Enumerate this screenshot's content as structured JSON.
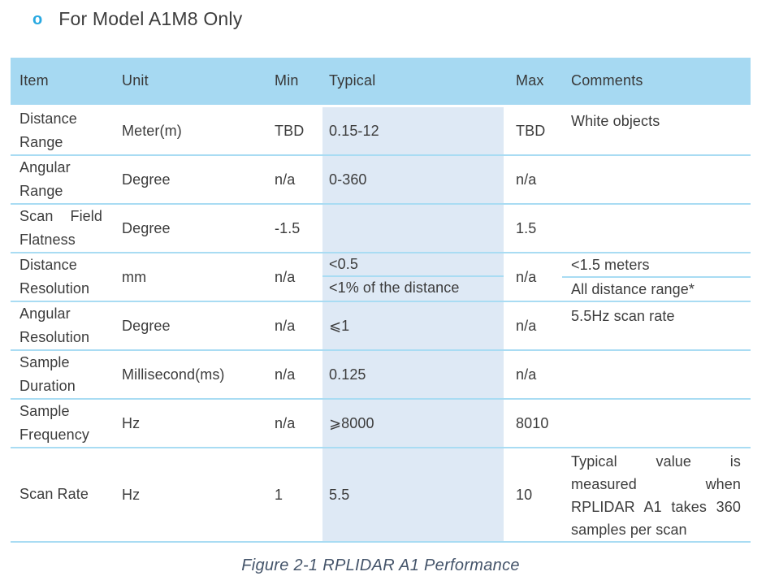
{
  "heading": {
    "bullet": "o",
    "text": "For Model A1M8 Only"
  },
  "table": {
    "columns": [
      "Item",
      "Unit",
      "Min",
      "Typical",
      "Max",
      "Comments"
    ],
    "rows": [
      {
        "item": "Distance Range",
        "unit": "Meter(m)",
        "min": "TBD",
        "typical": "0.15-12",
        "max": "TBD",
        "comments": "White objects"
      },
      {
        "item": "Angular Range",
        "unit": "Degree",
        "min": "n/a",
        "typical": "0-360",
        "max": "n/a",
        "comments": ""
      },
      {
        "item": "Scan Field Flatness",
        "unit": "Degree",
        "min": "-1.5",
        "typical": "",
        "max": "1.5",
        "comments": ""
      },
      {
        "item": "Distance Resolution",
        "unit": "mm",
        "min": "n/a",
        "typical": [
          "<0.5",
          "<1% of the distance"
        ],
        "max": "n/a",
        "comments": [
          "<1.5 meters",
          "All distance range*"
        ]
      },
      {
        "item": "Angular Resolution",
        "unit": "Degree",
        "min": "n/a",
        "typical": "⩽1",
        "max": "n/a",
        "comments": "5.5Hz scan rate"
      },
      {
        "item": "Sample Duration",
        "unit": "Millisecond(ms)",
        "min": "n/a",
        "typical": "0.125",
        "max": "n/a",
        "comments": ""
      },
      {
        "item": "Sample Frequency",
        "unit": "Hz",
        "min": "n/a",
        "typical": "⩾8000",
        "max": "8010",
        "comments": ""
      },
      {
        "item": "Scan Rate",
        "unit": "Hz",
        "min": "1",
        "typical": "5.5",
        "max": "10",
        "comments": "Typical value is measured when RPLIDAR A1 takes 360 samples per scan"
      }
    ]
  },
  "caption": "Figure 2-1 RPLIDAR A1 Performance",
  "colors": {
    "header_bg": "#A6D9F2",
    "typical_band_bg": "#DEE9F5",
    "divider": "#A9DCF3",
    "text": "#3C3C3C",
    "caption": "#44546A",
    "bullet": "#29A9E1"
  }
}
